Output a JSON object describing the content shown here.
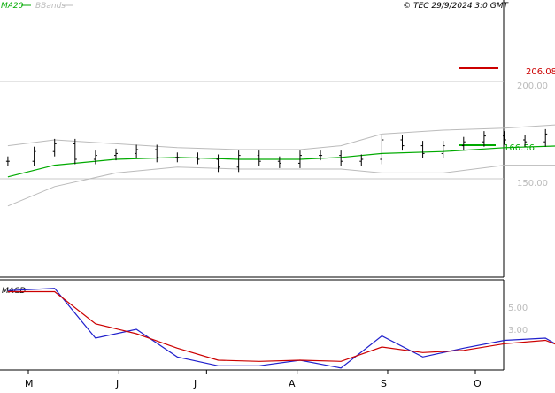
{
  "header": {
    "ma_label": "MA20",
    "bbands_label": "BBands",
    "copyright": "© TEC 29/9/2024 3:0 GMT"
  },
  "colors": {
    "price_bar": "#000000",
    "ma20": "#00aa00",
    "bbands": "#bbbbbb",
    "macd": "#2020cc",
    "signal": "#cc0000",
    "resistance": "#cc0000",
    "support": "#00aa00",
    "axis": "#000000",
    "grid": "#c8c8c8"
  },
  "chart_data": [
    {
      "type": "line",
      "panel": "price",
      "title": "",
      "y_tick_labels": [
        "200.00",
        "150.00"
      ],
      "ylim": [
        100,
        250
      ],
      "x_tick_labels": [
        "M",
        "J",
        "J",
        "A",
        "S",
        "O"
      ],
      "x_ticks": [
        {
          "label": "M",
          "date": "2024-05-01"
        },
        {
          "label": "J",
          "date": "2024-06-01"
        },
        {
          "label": "J",
          "date": "2024-07-01"
        },
        {
          "label": "A",
          "date": "2024-08-01"
        },
        {
          "label": "S",
          "date": "2024-09-01"
        },
        {
          "label": "O",
          "date": "2024-10-01"
        }
      ],
      "gridlines": [
        200,
        150
      ],
      "resistance": {
        "value": 206.08,
        "label": "206.08"
      },
      "support": {
        "value": 166.56,
        "label": "166.56"
      },
      "ohlc_closes": [
        {
          "date": "2024-04-24",
          "value": 159
        },
        {
          "date": "2024-05-03",
          "value": 164
        },
        {
          "date": "2024-05-10",
          "value": 168
        },
        {
          "date": "2024-05-17",
          "value": 160
        },
        {
          "date": "2024-05-24",
          "value": 162
        },
        {
          "date": "2024-05-31",
          "value": 163
        },
        {
          "date": "2024-06-07",
          "value": 165
        },
        {
          "date": "2024-06-14",
          "value": 161
        },
        {
          "date": "2024-06-21",
          "value": 161
        },
        {
          "date": "2024-06-28",
          "value": 160
        },
        {
          "date": "2024-07-05",
          "value": 156
        },
        {
          "date": "2024-07-12",
          "value": 162
        },
        {
          "date": "2024-07-19",
          "value": 159
        },
        {
          "date": "2024-07-26",
          "value": 158
        },
        {
          "date": "2024-08-02",
          "value": 162
        },
        {
          "date": "2024-08-09",
          "value": 162
        },
        {
          "date": "2024-08-16",
          "value": 159
        },
        {
          "date": "2024-08-23",
          "value": 160
        },
        {
          "date": "2024-08-30",
          "value": 170
        },
        {
          "date": "2024-09-06",
          "value": 167
        },
        {
          "date": "2024-09-13",
          "value": 163
        },
        {
          "date": "2024-09-20",
          "value": 167
        },
        {
          "date": "2024-09-27",
          "value": 169
        },
        {
          "date": "2024-10-04",
          "value": 172
        },
        {
          "date": "2024-10-11",
          "value": 170
        },
        {
          "date": "2024-10-18",
          "value": 169
        },
        {
          "date": "2024-10-25",
          "value": 173
        },
        {
          "date": "2024-11-01",
          "value": 175
        },
        {
          "date": "2024-11-08",
          "value": 164
        },
        {
          "date": "2024-11-15",
          "value": 163
        },
        {
          "date": "2024-11-22",
          "value": 167
        },
        {
          "date": "2024-11-29",
          "value": 183
        },
        {
          "date": "2024-12-06",
          "value": 190
        },
        {
          "date": "2024-12-13",
          "value": 193
        },
        {
          "date": "2024-12-20",
          "value": 194
        },
        {
          "date": "2024-12-27",
          "value": 188
        }
      ],
      "series": [
        {
          "name": "MA20",
          "points": [
            {
              "date": "2024-04-24",
              "value": 151
            },
            {
              "date": "2024-05-10",
              "value": 157
            },
            {
              "date": "2024-05-31",
              "value": 160
            },
            {
              "date": "2024-06-21",
              "value": 161
            },
            {
              "date": "2024-07-12",
              "value": 160
            },
            {
              "date": "2024-08-02",
              "value": 160
            },
            {
              "date": "2024-08-16",
              "value": 161
            },
            {
              "date": "2024-08-30",
              "value": 163
            },
            {
              "date": "2024-09-20",
              "value": 164
            },
            {
              "date": "2024-10-11",
              "value": 166
            },
            {
              "date": "2024-11-01",
              "value": 167
            },
            {
              "date": "2024-11-22",
              "value": 168
            },
            {
              "date": "2024-12-06",
              "value": 171
            },
            {
              "date": "2024-12-27",
              "value": 175
            }
          ]
        },
        {
          "name": "BBands upper",
          "points": [
            {
              "date": "2024-04-24",
              "value": 167
            },
            {
              "date": "2024-05-10",
              "value": 170
            },
            {
              "date": "2024-05-31",
              "value": 168
            },
            {
              "date": "2024-06-21",
              "value": 166
            },
            {
              "date": "2024-07-12",
              "value": 165
            },
            {
              "date": "2024-08-02",
              "value": 165
            },
            {
              "date": "2024-08-16",
              "value": 167
            },
            {
              "date": "2024-08-30",
              "value": 173
            },
            {
              "date": "2024-09-20",
              "value": 175
            },
            {
              "date": "2024-10-11",
              "value": 176
            },
            {
              "date": "2024-11-01",
              "value": 178
            },
            {
              "date": "2024-11-22",
              "value": 180
            },
            {
              "date": "2024-12-06",
              "value": 190
            },
            {
              "date": "2024-12-27",
              "value": 199
            }
          ]
        },
        {
          "name": "BBands lower",
          "points": [
            {
              "date": "2024-04-24",
              "value": 136
            },
            {
              "date": "2024-05-10",
              "value": 146
            },
            {
              "date": "2024-05-31",
              "value": 153
            },
            {
              "date": "2024-06-21",
              "value": 156
            },
            {
              "date": "2024-07-12",
              "value": 155
            },
            {
              "date": "2024-08-02",
              "value": 155
            },
            {
              "date": "2024-08-16",
              "value": 155
            },
            {
              "date": "2024-08-30",
              "value": 153
            },
            {
              "date": "2024-09-20",
              "value": 153
            },
            {
              "date": "2024-10-11",
              "value": 157
            },
            {
              "date": "2024-11-01",
              "value": 157
            },
            {
              "date": "2024-11-22",
              "value": 158
            },
            {
              "date": "2024-12-06",
              "value": 153
            },
            {
              "date": "2024-12-27",
              "value": 151
            }
          ]
        }
      ]
    },
    {
      "type": "line",
      "panel": "macd",
      "title": "MACD",
      "y_tick_labels": [
        "5.00",
        "3.00"
      ],
      "ylim": [
        -2,
        8
      ],
      "series": [
        {
          "name": "MACD",
          "points": [
            {
              "date": "2024-04-24",
              "value": 6.5
            },
            {
              "date": "2024-05-10",
              "value": 6.7
            },
            {
              "date": "2024-05-24",
              "value": 2.2
            },
            {
              "date": "2024-06-07",
              "value": 3.0
            },
            {
              "date": "2024-06-21",
              "value": 0.5
            },
            {
              "date": "2024-07-05",
              "value": -0.3
            },
            {
              "date": "2024-07-19",
              "value": -0.3
            },
            {
              "date": "2024-08-02",
              "value": 0.2
            },
            {
              "date": "2024-08-16",
              "value": -0.5
            },
            {
              "date": "2024-08-30",
              "value": 2.4
            },
            {
              "date": "2024-09-13",
              "value": 0.5
            },
            {
              "date": "2024-09-27",
              "value": 1.3
            },
            {
              "date": "2024-10-11",
              "value": 2.0
            },
            {
              "date": "2024-10-25",
              "value": 2.2
            },
            {
              "date": "2024-11-08",
              "value": 0.1
            },
            {
              "date": "2024-11-22",
              "value": 0.8
            },
            {
              "date": "2024-12-06",
              "value": 5.0
            },
            {
              "date": "2024-12-20",
              "value": 5.7
            }
          ]
        },
        {
          "name": "Signal",
          "points": [
            {
              "date": "2024-04-24",
              "value": 6.4
            },
            {
              "date": "2024-05-10",
              "value": 6.4
            },
            {
              "date": "2024-05-24",
              "value": 3.5
            },
            {
              "date": "2024-06-07",
              "value": 2.6
            },
            {
              "date": "2024-06-21",
              "value": 1.3
            },
            {
              "date": "2024-07-05",
              "value": 0.2
            },
            {
              "date": "2024-07-19",
              "value": 0.1
            },
            {
              "date": "2024-08-02",
              "value": 0.2
            },
            {
              "date": "2024-08-16",
              "value": 0.1
            },
            {
              "date": "2024-08-30",
              "value": 1.4
            },
            {
              "date": "2024-09-13",
              "value": 0.9
            },
            {
              "date": "2024-09-27",
              "value": 1.1
            },
            {
              "date": "2024-10-11",
              "value": 1.7
            },
            {
              "date": "2024-10-25",
              "value": 2.0
            },
            {
              "date": "2024-11-08",
              "value": 0.6
            },
            {
              "date": "2024-11-22",
              "value": 0.4
            },
            {
              "date": "2024-12-06",
              "value": 2.8
            },
            {
              "date": "2024-12-20",
              "value": 4.8
            }
          ]
        }
      ]
    }
  ]
}
